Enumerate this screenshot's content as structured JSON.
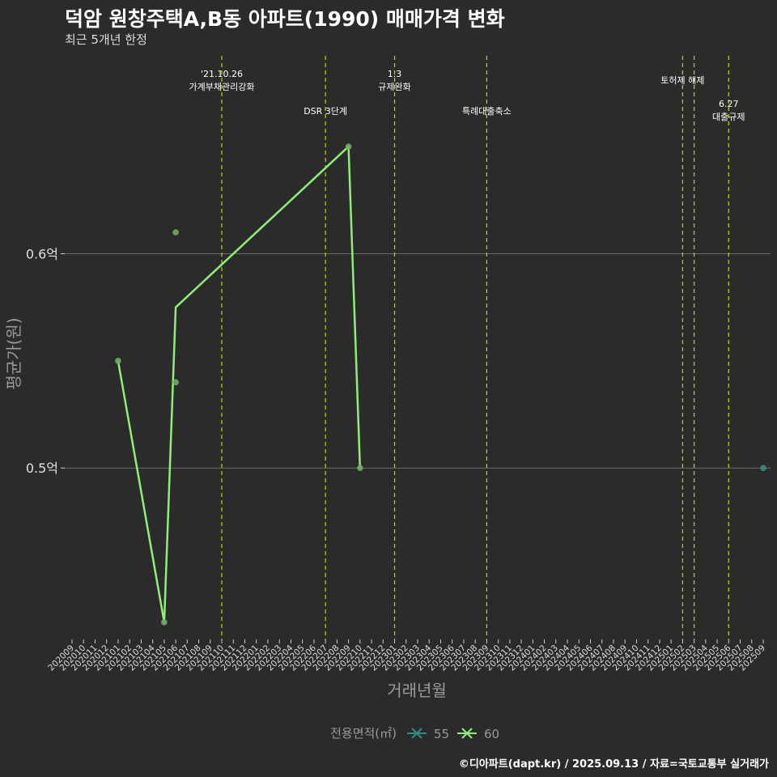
{
  "title": "덕암 원창주택A,B동 아파트(1990) 매매가격 변화",
  "subtitle": "최근 5개년 한정",
  "caption": "©디아파트(dapt.kr) / 2025.09.13 / 자료=국토교통부 실거래가",
  "colors": {
    "background": "#2b2b2b",
    "grid": "#6a6a6a",
    "series_55": "#2e8b87",
    "series_60": "#90ee78",
    "event_line": "#c8d400"
  },
  "chart_data": {
    "type": "line",
    "title": "덕암 원창주택A,B동 아파트(1990) 매매가격 변화",
    "xlabel": "거래년월",
    "ylabel": "평균가(원)",
    "ylim": [
      0.42,
      0.695
    ],
    "y_ticks": [
      {
        "value": 0.5,
        "label": "0.5억"
      },
      {
        "value": 0.6,
        "label": "0.6억"
      }
    ],
    "categories": [
      "202009",
      "202010",
      "202011",
      "202012",
      "202101",
      "202102",
      "202103",
      "202104",
      "202105",
      "202106",
      "202107",
      "202108",
      "202109",
      "202110",
      "202111",
      "202112",
      "202201",
      "202202",
      "202203",
      "202204",
      "202205",
      "202206",
      "202207",
      "202208",
      "202209",
      "202210",
      "202211",
      "202212",
      "202301",
      "202302",
      "202303",
      "202304",
      "202305",
      "202306",
      "202307",
      "202308",
      "202309",
      "202310",
      "202311",
      "202312",
      "202401",
      "202402",
      "202403",
      "202404",
      "202405",
      "202406",
      "202407",
      "202408",
      "202409",
      "202410",
      "202411",
      "202412",
      "202501",
      "202502",
      "202503",
      "202504",
      "202505",
      "202506",
      "202507",
      "202508",
      "202509"
    ],
    "legend": {
      "title": "전용면적(㎡)",
      "position": "bottom",
      "entries": [
        "55",
        "60"
      ]
    },
    "series": [
      {
        "name": "55",
        "line": [],
        "points": [
          {
            "x": "202509",
            "y": 0.5
          }
        ]
      },
      {
        "name": "60",
        "line": [
          {
            "x": "202101",
            "y": 0.55
          },
          {
            "x": "202105",
            "y": 0.428
          },
          {
            "x": "202106",
            "y": 0.575
          },
          {
            "x": "202209",
            "y": 0.65
          },
          {
            "x": "202210",
            "y": 0.5
          }
        ],
        "points": [
          {
            "x": "202101",
            "y": 0.55
          },
          {
            "x": "202105",
            "y": 0.428
          },
          {
            "x": "202106",
            "y": 0.61
          },
          {
            "x": "202106",
            "y": 0.54
          },
          {
            "x": "202209",
            "y": 0.65
          },
          {
            "x": "202210",
            "y": 0.5
          }
        ]
      }
    ],
    "events": [
      {
        "x": "202110",
        "lines": [
          "'21.10.26",
          "가계부채관리강화"
        ],
        "row": 0
      },
      {
        "x": "202207",
        "lines": [
          "DSR 3단계"
        ],
        "row": 2
      },
      {
        "x": "202301",
        "lines": [
          "1.3",
          "규제완화"
        ],
        "row": 0
      },
      {
        "x": "202309",
        "lines": [
          "특례대출축소"
        ],
        "row": 2
      },
      {
        "x": "202502",
        "lines": [
          "토허제 해제"
        ],
        "row": 1
      },
      {
        "x": "202503",
        "lines": [],
        "row": 1
      },
      {
        "x": "202506",
        "lines": [
          "6.27",
          "대출규제"
        ],
        "row": 1.5
      }
    ]
  }
}
